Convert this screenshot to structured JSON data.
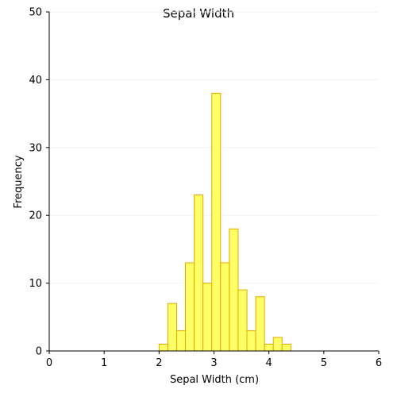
{
  "chart_data": {
    "type": "bar",
    "title": "Sepal Width",
    "xlabel": "Sepal Width (cm)",
    "ylabel": "Frequency",
    "xlim": [
      0,
      6
    ],
    "ylim": [
      0,
      50
    ],
    "x_ticks": [
      0,
      1,
      2,
      3,
      4,
      5,
      6
    ],
    "y_ticks": [
      0,
      10,
      20,
      30,
      40,
      50
    ],
    "grid": true,
    "bin_width": 0.16,
    "bins": [
      {
        "start": 2.0,
        "count": 1
      },
      {
        "start": 2.16,
        "count": 7
      },
      {
        "start": 2.32,
        "count": 3
      },
      {
        "start": 2.48,
        "count": 13
      },
      {
        "start": 2.64,
        "count": 23
      },
      {
        "start": 2.8,
        "count": 10
      },
      {
        "start": 2.96,
        "count": 38
      },
      {
        "start": 3.12,
        "count": 13
      },
      {
        "start": 3.28,
        "count": 18
      },
      {
        "start": 3.44,
        "count": 9
      },
      {
        "start": 3.6,
        "count": 3
      },
      {
        "start": 3.76,
        "count": 8
      },
      {
        "start": 3.92,
        "count": 1
      },
      {
        "start": 4.08,
        "count": 2
      },
      {
        "start": 4.24,
        "count": 1
      }
    ],
    "colors": {
      "bar_fill": "#ffff66",
      "bar_edge": "#e6a800",
      "axis": "#000000",
      "grid": "#f2f2f2"
    }
  }
}
